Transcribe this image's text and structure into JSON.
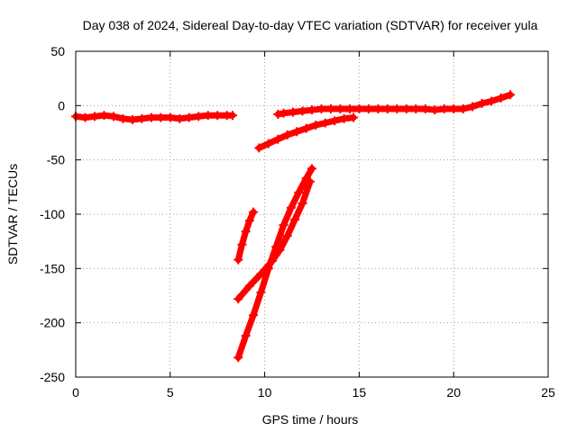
{
  "chart_data": {
    "type": "scatter",
    "title": "Day 038 of 2024, Sidereal Day-to-day VTEC variation (SDTVAR) for receiver yula",
    "xlabel": "GPS time / hours",
    "ylabel": "SDTVAR / TECUs",
    "xlim": [
      0,
      25
    ],
    "ylim": [
      -250,
      50
    ],
    "xticks": [
      0,
      5,
      10,
      15,
      20,
      25
    ],
    "yticks": [
      50,
      0,
      -50,
      -100,
      -150,
      -200,
      -250
    ],
    "xtick_labels": [
      "0",
      "5",
      "10",
      "15",
      "20",
      "25"
    ],
    "ytick_labels": [
      "50",
      "0",
      "-50",
      "-100",
      "-150",
      "-200",
      "-250"
    ],
    "grid": true,
    "grid_style": "dotted",
    "marker": "plus",
    "series_color": "#ff0000",
    "series": [
      {
        "values": [
          [
            0,
            -10
          ],
          [
            0.5,
            -11
          ],
          [
            1,
            -10
          ],
          [
            1.5,
            -9
          ],
          [
            2,
            -10
          ],
          [
            2.5,
            -12
          ],
          [
            3,
            -13
          ],
          [
            3.5,
            -12
          ],
          [
            4,
            -11
          ],
          [
            4.5,
            -11
          ],
          [
            5,
            -11
          ],
          [
            5.5,
            -12
          ],
          [
            6,
            -11
          ],
          [
            6.5,
            -10
          ],
          [
            7,
            -9
          ],
          [
            7.5,
            -9
          ],
          [
            8,
            -9
          ],
          [
            8.3,
            -9
          ]
        ]
      },
      {
        "values": [
          [
            10.7,
            -8
          ],
          [
            11,
            -7
          ],
          [
            11.5,
            -6
          ],
          [
            12,
            -5
          ],
          [
            12.5,
            -4
          ],
          [
            13,
            -3
          ],
          [
            13.5,
            -3
          ],
          [
            14,
            -3
          ],
          [
            14.5,
            -3
          ],
          [
            15,
            -3
          ],
          [
            15.5,
            -3
          ],
          [
            16,
            -3
          ],
          [
            16.5,
            -3
          ],
          [
            17,
            -3
          ],
          [
            17.5,
            -3
          ],
          [
            18,
            -3
          ],
          [
            18.5,
            -3
          ],
          [
            19,
            -4
          ],
          [
            19.5,
            -3
          ],
          [
            20,
            -3
          ],
          [
            20.5,
            -3
          ],
          [
            21,
            -1
          ],
          [
            21.5,
            2
          ],
          [
            22,
            4
          ],
          [
            22.5,
            7
          ],
          [
            23,
            10
          ]
        ]
      },
      {
        "values": [
          [
            9.7,
            -39
          ],
          [
            10.2,
            -35
          ],
          [
            10.7,
            -31
          ],
          [
            11.2,
            -27
          ],
          [
            11.7,
            -24
          ],
          [
            12.2,
            -21
          ],
          [
            12.7,
            -18
          ],
          [
            13.2,
            -16
          ],
          [
            13.7,
            -14
          ],
          [
            14.2,
            -12
          ],
          [
            14.7,
            -11
          ]
        ]
      },
      {
        "values": [
          [
            8.6,
            -142
          ],
          [
            8.8,
            -128
          ],
          [
            9,
            -116
          ],
          [
            9.2,
            -106
          ],
          [
            9.4,
            -98
          ]
        ]
      },
      {
        "values": [
          [
            8.6,
            -178
          ],
          [
            9.2,
            -166
          ],
          [
            9.8,
            -155
          ],
          [
            10.4,
            -143
          ],
          [
            10.8,
            -133
          ],
          [
            11.2,
            -120
          ],
          [
            11.6,
            -105
          ],
          [
            12,
            -90
          ],
          [
            12.4,
            -70
          ]
        ]
      },
      {
        "values": [
          [
            8.6,
            -232
          ],
          [
            9,
            -212
          ],
          [
            9.4,
            -193
          ],
          [
            9.8,
            -172
          ],
          [
            10.2,
            -150
          ],
          [
            10.6,
            -130
          ],
          [
            11,
            -110
          ],
          [
            11.4,
            -94
          ],
          [
            11.8,
            -80
          ],
          [
            12.2,
            -67
          ],
          [
            12.5,
            -58
          ]
        ]
      }
    ]
  }
}
